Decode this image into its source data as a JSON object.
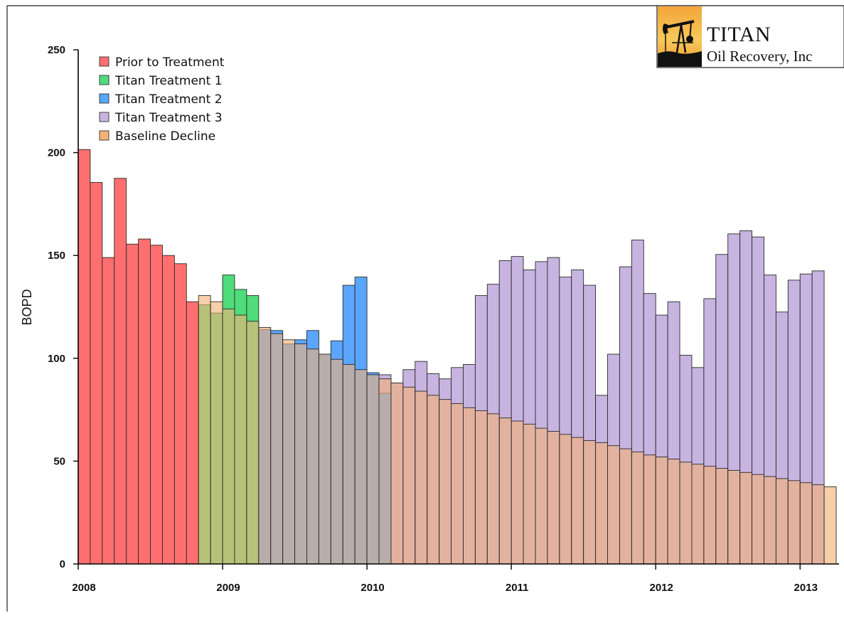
{
  "logo": {
    "title": "TITAN",
    "subtitle": "Oil Recovery, Inc"
  },
  "chart_data": {
    "type": "bar",
    "title": "",
    "xlabel": "",
    "ylabel": "BOPD",
    "ylim": [
      0,
      250
    ],
    "yticks": [
      0,
      50,
      100,
      150,
      200,
      250
    ],
    "xticks": [
      "2008",
      "2009",
      "2010",
      "2011",
      "2012",
      "2013"
    ],
    "x_start": "2008-01",
    "months": 63,
    "grid": false,
    "legend_position": "top-left",
    "layering": "bars overlap; Baseline Decline drawn semi-transparent on top of the treatment bars",
    "series": [
      {
        "name": "Prior to Treatment",
        "color": "#ff6f6f",
        "values": [
          201.5,
          185.5,
          149,
          187.5,
          155.5,
          158,
          155,
          150,
          146,
          127.5
        ]
      },
      {
        "name": "Titan Treatment 1",
        "color": "#4fdc7a",
        "offset": 10,
        "values": [
          126,
          122,
          140.5,
          133.5,
          130.5
        ]
      },
      {
        "name": "Titan Treatment 2",
        "color": "#5aa6ff",
        "offset": 15,
        "values": [
          114,
          113.5,
          107,
          109,
          113.5,
          102,
          108.5,
          135.5,
          139.5,
          93,
          83
        ]
      },
      {
        "name": "Titan Treatment 3",
        "color": "#c7b4e0",
        "offset": 25,
        "values": [
          92,
          88,
          94.5,
          98.5,
          92.5,
          90,
          95.5,
          97,
          130.5,
          136,
          147.5,
          149.5,
          143,
          147,
          149,
          139.5,
          143,
          135.5,
          82,
          102,
          144.5,
          157.5,
          131.5,
          121,
          127.5,
          101.5,
          95.5,
          129,
          150.5,
          160.5,
          162,
          159,
          140.5,
          122.5,
          138,
          141,
          142.5
        ]
      },
      {
        "name": "Baseline Decline",
        "color": "#f4b278",
        "offset": 10,
        "values": [
          130.5,
          127.5,
          124,
          121,
          118,
          115,
          112,
          109,
          107,
          104.5,
          102,
          99.5,
          97,
          94.5,
          92,
          90,
          88,
          86,
          84,
          82,
          80,
          78,
          76,
          74.5,
          73,
          71,
          69.5,
          68,
          66,
          64.5,
          63,
          61.5,
          60,
          59,
          57.5,
          56,
          54.5,
          53,
          52,
          51,
          49.5,
          48.5,
          47.5,
          46.5,
          45.5,
          44.5,
          43.5,
          42.5,
          41.5,
          40.5,
          39.5,
          38.5,
          37.5
        ]
      }
    ]
  }
}
